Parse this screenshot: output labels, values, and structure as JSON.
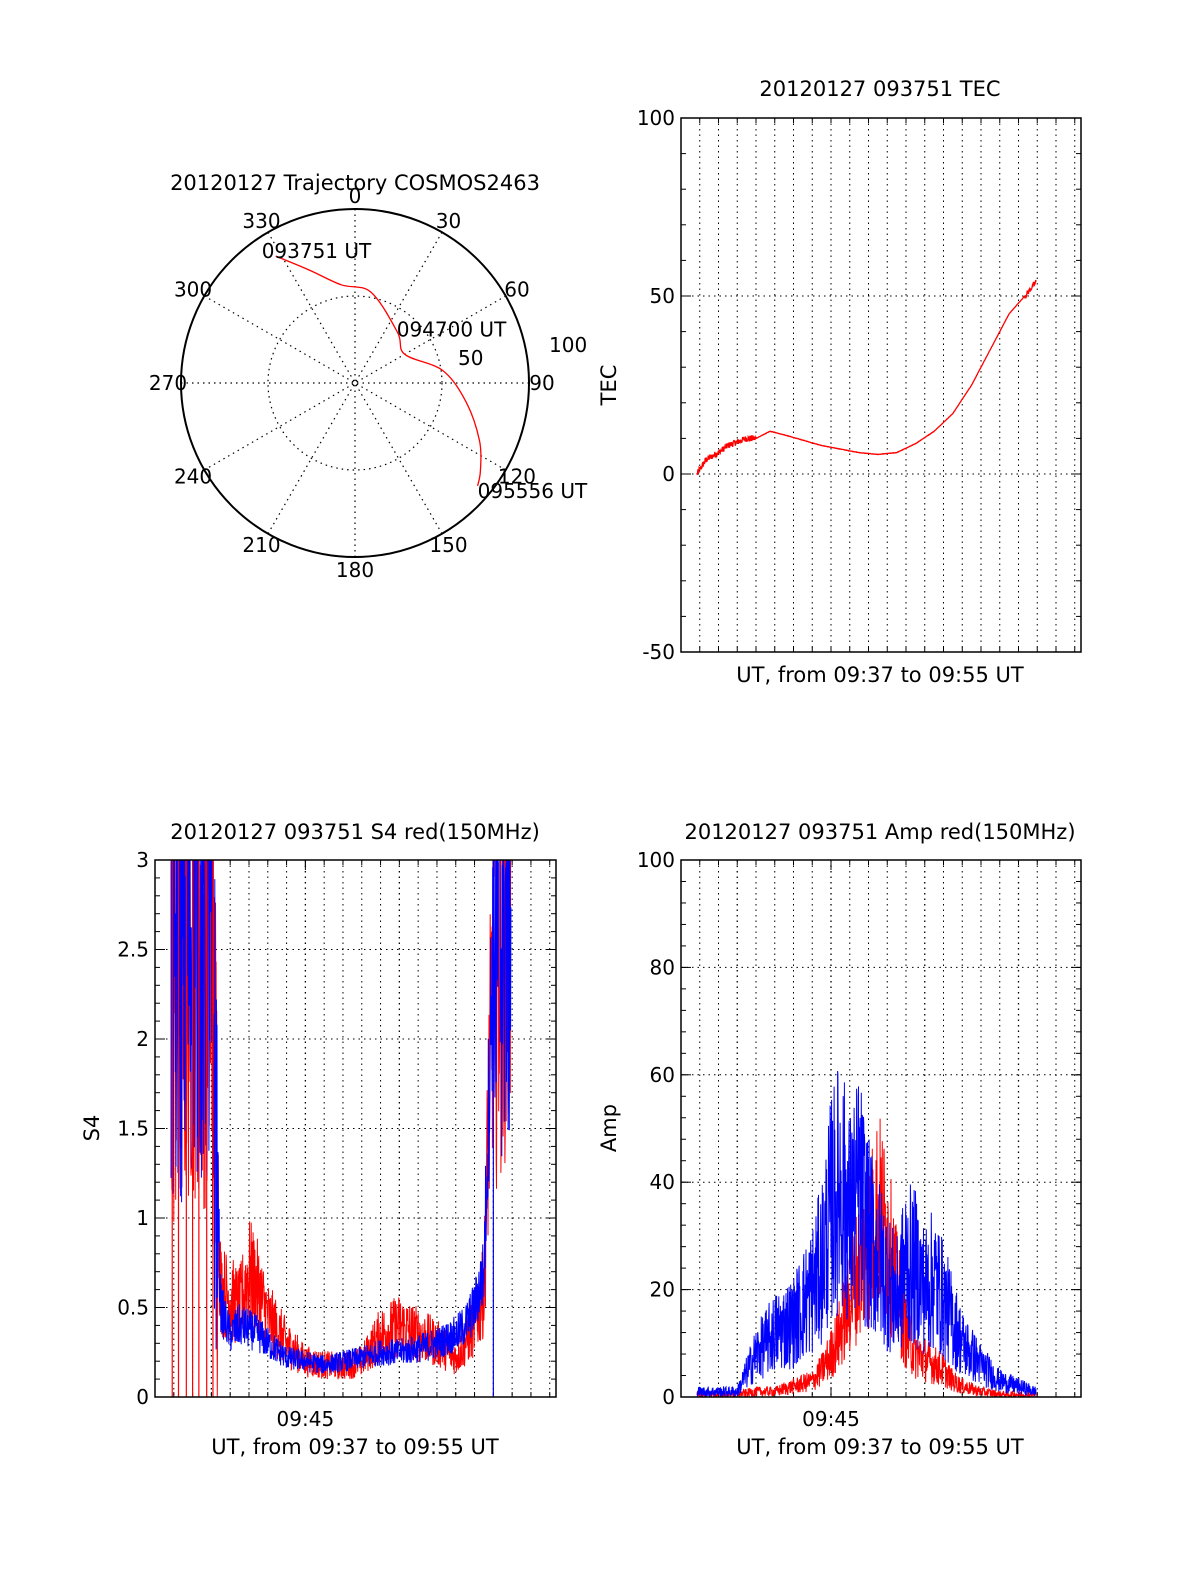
{
  "colors": {
    "red": "#ff0000",
    "blue": "#0000ff",
    "axis": "#000000",
    "grid": "#000000"
  },
  "chart_data": [
    {
      "type": "polar",
      "title": "20120127 Trajectory COSMOS2463",
      "azimuth_labels": [
        "0",
        "30",
        "60",
        "90",
        "120",
        "150",
        "180",
        "210",
        "240",
        "270",
        "300",
        "330"
      ],
      "ring_labels": [
        "50",
        "100"
      ],
      "grid": true,
      "series": [
        {
          "color": "#ff0000",
          "points": [
            {
              "az": 328,
              "r": 86
            },
            {
              "az": 338,
              "r": 70
            },
            {
              "az": 352,
              "r": 57
            },
            {
              "az": 10,
              "r": 53
            },
            {
              "az": 40,
              "r": 38
            },
            {
              "az": 60,
              "r": 33
            },
            {
              "az": 82,
              "r": 51
            },
            {
              "az": 100,
              "r": 65
            },
            {
              "az": 115,
              "r": 79
            },
            {
              "az": 125,
              "r": 88
            },
            {
              "az": 130,
              "r": 92
            }
          ]
        }
      ],
      "annotations": [
        {
          "text": "093751 UT",
          "az": 328,
          "r": 86
        },
        {
          "text": "094700 UT",
          "az": 60,
          "r": 33
        },
        {
          "text": "095556 UT",
          "az": 130,
          "r": 92
        }
      ]
    },
    {
      "type": "line",
      "title": "20120127 093751 TEC",
      "xlabel": "UT, from 09:37 to 09:55 UT",
      "ylabel": "TEC",
      "xlim": [
        "09:37:00",
        "09:58:20"
      ],
      "ylim": [
        -50,
        100
      ],
      "yticks": [
        -50,
        0,
        50,
        100
      ],
      "grid": true,
      "series": [
        {
          "color": "#ff0000",
          "x": [
            "09:37:51",
            "09:38:20",
            "09:39:00",
            "09:39:30",
            "09:40:00",
            "09:40:30",
            "09:41:00",
            "09:41:45",
            "09:42:30",
            "09:43:30",
            "09:44:30",
            "09:45:30",
            "09:46:30",
            "09:47:30",
            "09:48:30",
            "09:49:30",
            "09:50:30",
            "09:51:30",
            "09:52:30",
            "09:53:30",
            "09:54:30",
            "09:55:30",
            "09:55:56"
          ],
          "y": [
            0,
            4,
            6,
            8,
            9,
            10,
            10,
            12,
            11,
            9.5,
            8,
            7,
            6,
            5.5,
            6,
            8.5,
            12,
            17,
            25,
            35,
            45,
            51,
            54
          ]
        }
      ]
    },
    {
      "type": "line",
      "title": "20120127 093751 S4 red(150MHz)",
      "xlabel": "UT, from 09:37 to 09:55 UT",
      "ylabel": "S4",
      "xticks": [
        "09:45"
      ],
      "xlim": [
        "09:37:00",
        "09:58:20"
      ],
      "ylim": [
        0,
        3
      ],
      "yticks": [
        0,
        0.5,
        1,
        1.5,
        2,
        2.5,
        3
      ],
      "grid": true,
      "series": [
        {
          "color": "#ff0000",
          "x": [
            "09:37:51",
            "09:39:00",
            "09:40:00",
            "09:40:30",
            "09:41:00",
            "09:41:30",
            "09:42:00",
            "09:42:30",
            "09:43:00",
            "09:44:00",
            "09:45:00",
            "09:46:00",
            "09:47:00",
            "09:48:00",
            "09:49:00",
            "09:50:00",
            "09:51:00",
            "09:52:00",
            "09:53:00",
            "09:53:30",
            "09:54:00",
            "09:54:30",
            "09:55:00",
            "09:55:56"
          ],
          "y": [
            2.2,
            2.5,
            2.4,
            0.6,
            0.55,
            0.5,
            0.7,
            0.6,
            0.45,
            0.3,
            0.2,
            0.18,
            0.17,
            0.2,
            0.35,
            0.4,
            0.35,
            0.3,
            0.22,
            0.3,
            0.4,
            0.6,
            2.5,
            2.8
          ]
        },
        {
          "color": "#0000ff",
          "x": [
            "09:37:51",
            "09:39:00",
            "09:40:00",
            "09:40:30",
            "09:41:00",
            "09:41:30",
            "09:42:00",
            "09:42:30",
            "09:43:00",
            "09:44:00",
            "09:45:00",
            "09:46:00",
            "09:47:00",
            "09:48:00",
            "09:49:00",
            "09:50:00",
            "09:51:00",
            "09:52:00",
            "09:53:00",
            "09:53:30",
            "09:54:00",
            "09:54:30",
            "09:55:00",
            "09:55:56"
          ],
          "y": [
            2.3,
            2.6,
            2.4,
            0.5,
            0.35,
            0.4,
            0.38,
            0.35,
            0.3,
            0.22,
            0.2,
            0.18,
            0.2,
            0.22,
            0.25,
            0.25,
            0.27,
            0.3,
            0.35,
            0.4,
            0.5,
            0.7,
            2.6,
            2.7
          ]
        }
      ]
    },
    {
      "type": "line",
      "title": "20120127 093751 Amp red(150MHz)",
      "xlabel": "UT, from 09:37 to 09:55 UT",
      "ylabel": "Amp",
      "xticks": [
        "09:45"
      ],
      "xlim": [
        "09:37:00",
        "09:58:20"
      ],
      "ylim": [
        0,
        100
      ],
      "yticks": [
        0,
        20,
        40,
        60,
        80,
        100
      ],
      "grid": true,
      "series": [
        {
          "color": "#ff0000",
          "x": [
            "09:37:51",
            "09:40:00",
            "09:41:00",
            "09:42:00",
            "09:43:00",
            "09:44:00",
            "09:44:30",
            "09:45:00",
            "09:45:30",
            "09:46:00",
            "09:46:30",
            "09:47:00",
            "09:47:30",
            "09:48:00",
            "09:48:30",
            "09:49:00",
            "09:49:30",
            "09:50:00",
            "09:50:30",
            "09:51:00",
            "09:51:30",
            "09:52:00",
            "09:53:00",
            "09:54:00",
            "09:55:56"
          ],
          "y": [
            0.5,
            0.5,
            1,
            1,
            2,
            3,
            5,
            8,
            12,
            18,
            24,
            28,
            35,
            30,
            20,
            12,
            8,
            7,
            6,
            5,
            3,
            2,
            1,
            0.5,
            0.5
          ]
        },
        {
          "color": "#0000ff",
          "x": [
            "09:37:51",
            "09:40:00",
            "09:41:00",
            "09:42:00",
            "09:43:00",
            "09:44:00",
            "09:44:30",
            "09:45:00",
            "09:45:30",
            "09:46:00",
            "09:46:30",
            "09:47:00",
            "09:47:30",
            "09:48:00",
            "09:48:30",
            "09:49:00",
            "09:49:30",
            "09:50:00",
            "09:50:30",
            "09:51:00",
            "09:51:30",
            "09:52:00",
            "09:53:00",
            "09:54:00",
            "09:55:56"
          ],
          "y": [
            1,
            1,
            8,
            12,
            14,
            20,
            25,
            35,
            40,
            33,
            38,
            30,
            26,
            22,
            18,
            25,
            24,
            20,
            22,
            18,
            14,
            10,
            6,
            3,
            1
          ]
        }
      ]
    }
  ]
}
